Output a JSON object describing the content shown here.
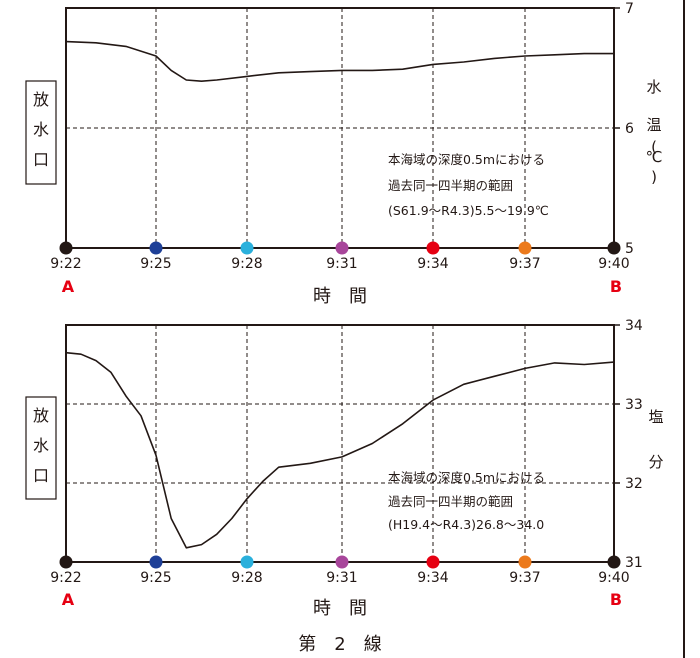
{
  "chart_data": [
    {
      "type": "line",
      "side_label": [
        "放",
        "水",
        "口"
      ],
      "xlabel": "時　間",
      "ylabel": [
        "水",
        "温",
        "(",
        "℃",
        ")"
      ],
      "x_ticks": [
        "9:22",
        "9:25",
        "9:28",
        "9:31",
        "9:34",
        "9:37",
        "9:40"
      ],
      "point_labels": {
        "start": "A",
        "end": "B"
      },
      "point_colors": [
        "#231815",
        "#1e3f97",
        "#2ab0dc",
        "#a8469b",
        "#e60012",
        "#ec7a1c",
        "#231815"
      ],
      "y_ticks": [
        "7",
        "6",
        "5"
      ],
      "ylim": [
        5,
        7
      ],
      "grid_y": [
        6
      ],
      "annotation": [
        "本海域の深度0.5mにおける",
        "過去同一四半期の範囲",
        "(S61.9〜R4.3)5.5〜19.9℃"
      ],
      "series": [
        {
          "x": [
            "9:22",
            "9:23",
            "9:24",
            "9:25",
            "9:25:30",
            "9:26",
            "9:26:30",
            "9:27",
            "9:28",
            "9:29",
            "9:30",
            "9:31",
            "9:32",
            "9:33",
            "9:34",
            "9:35",
            "9:36",
            "9:37",
            "9:38",
            "9:39",
            "9:40"
          ],
          "values": [
            6.72,
            6.71,
            6.68,
            6.6,
            6.48,
            6.4,
            6.39,
            6.4,
            6.43,
            6.46,
            6.47,
            6.48,
            6.48,
            6.49,
            6.53,
            6.55,
            6.58,
            6.6,
            6.61,
            6.62,
            6.62
          ]
        }
      ]
    },
    {
      "type": "line",
      "side_label": [
        "放",
        "水",
        "口"
      ],
      "xlabel": "時　間",
      "ylabel": [
        "塩",
        "分"
      ],
      "x_ticks": [
        "9:22",
        "9:25",
        "9:28",
        "9:31",
        "9:34",
        "9:37",
        "9:40"
      ],
      "point_labels": {
        "start": "A",
        "end": "B"
      },
      "point_colors": [
        "#231815",
        "#1e3f97",
        "#2ab0dc",
        "#a8469b",
        "#e60012",
        "#ec7a1c",
        "#231815"
      ],
      "y_ticks": [
        "34",
        "33",
        "32",
        "31"
      ],
      "ylim": [
        31,
        34
      ],
      "grid_y": [
        33,
        32
      ],
      "annotation": [
        "本海域の深度0.5mにおける",
        "過去同一四半期の範囲",
        "(H19.4〜R4.3)26.8〜34.0"
      ],
      "series": [
        {
          "x": [
            "9:22",
            "9:22:30",
            "9:23",
            "9:23:30",
            "9:24",
            "9:24:30",
            "9:25",
            "9:25:30",
            "9:26",
            "9:26:30",
            "9:27",
            "9:27:30",
            "9:28",
            "9:28:30",
            "9:29",
            "9:30",
            "9:31",
            "9:32",
            "9:33",
            "9:34",
            "9:35",
            "9:36",
            "9:37",
            "9:38",
            "9:39",
            "9:40"
          ],
          "values": [
            33.65,
            33.63,
            33.55,
            33.4,
            33.1,
            32.85,
            32.35,
            31.55,
            31.18,
            31.22,
            31.35,
            31.55,
            31.8,
            32.02,
            32.2,
            32.25,
            32.33,
            32.5,
            32.75,
            33.05,
            33.25,
            33.35,
            33.45,
            33.52,
            33.5,
            33.53
          ]
        }
      ]
    }
  ],
  "caption": "第　2　線"
}
